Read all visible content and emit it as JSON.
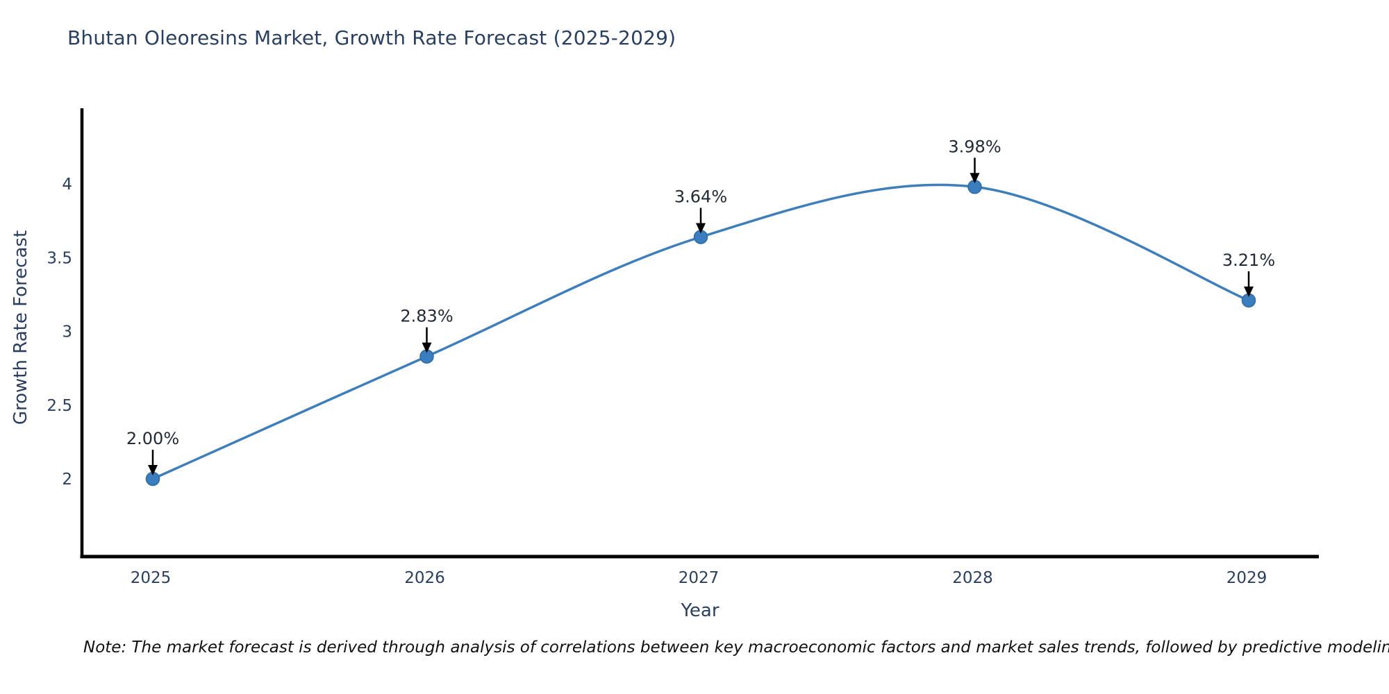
{
  "note": "Note: The market forecast is derived through analysis of correlations between key macroeconomic factors and market sales trends, followed by predictive modeling to project future sales",
  "chart_data": {
    "type": "line",
    "title": "Bhutan Oleoresins Market, Growth Rate Forecast (2025-2029)",
    "xlabel": "Year",
    "ylabel": "Growth Rate Forecast",
    "categories": [
      "2025",
      "2026",
      "2027",
      "2028",
      "2029"
    ],
    "values": [
      2.0,
      2.83,
      3.64,
      3.98,
      3.21
    ],
    "point_labels": [
      "2.00%",
      "2.83%",
      "3.64%",
      "3.98%",
      "3.21%"
    ],
    "yticks": [
      "2",
      "2.5",
      "3",
      "3.5",
      "4"
    ],
    "ylim": [
      1.47,
      4.5
    ],
    "grid": false,
    "legend": "none",
    "curve": "smooth-spline",
    "annotations": "value labels with downward arrows onto each point",
    "colors": {
      "line": "#3e7eba",
      "marker": "#3a7ebf",
      "marker_edge": "#2f6ba3",
      "axis": "#000000",
      "text": "#2a3f5f",
      "annotation_text": "#222a35",
      "arrow": "#000000",
      "note_text": "#111111",
      "background": "#ffffff"
    }
  }
}
